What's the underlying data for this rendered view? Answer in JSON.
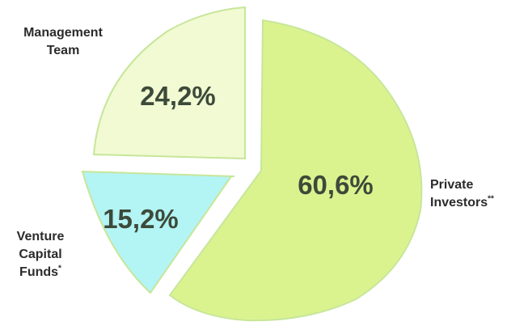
{
  "chart_data": {
    "type": "pie",
    "title": "",
    "slices": [
      {
        "label": "Private Investors",
        "marker": "**",
        "value": 60.6,
        "display": "60,6%",
        "color": "#dbf38f"
      },
      {
        "label": "Venture Capital Funds",
        "marker": "*",
        "value": 15.2,
        "display": "15,2%",
        "color": "#b3f4f4"
      },
      {
        "label": "Management Team",
        "marker": "",
        "value": 24.2,
        "display": "24,2%",
        "color": "#f1fad2"
      }
    ],
    "stroke_color": "#c7e69a",
    "legend": "none"
  },
  "labels": {
    "management_line1": "Management",
    "management_line2": "Team",
    "venture_line1": "Venture",
    "venture_line2": "Capital",
    "venture_line3": "Funds",
    "venture_marker": "*",
    "private_line1": "Private",
    "private_line2": "Investors",
    "private_marker": "**"
  }
}
